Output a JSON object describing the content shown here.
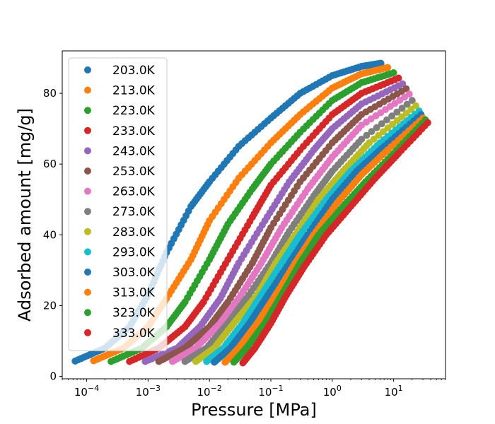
{
  "chart_data": {
    "type": "scatter",
    "xlabel": "Pressure [MPa]",
    "ylabel": "Adsorbed amount [mg/g]",
    "xscale": "log",
    "xlim": [
      4e-05,
      70
    ],
    "ylim": [
      -0.7,
      92
    ],
    "x_ticks": [
      {
        "value": 0.0001,
        "base": "10",
        "exp": "−4"
      },
      {
        "value": 0.001,
        "base": "10",
        "exp": "−3"
      },
      {
        "value": 0.01,
        "base": "10",
        "exp": "−2"
      },
      {
        "value": 0.1,
        "base": "10",
        "exp": "−1"
      },
      {
        "value": 1,
        "base": "10",
        "exp": "0"
      },
      {
        "value": 10,
        "base": "10",
        "exp": "1"
      }
    ],
    "y_ticks": [
      "0",
      "20",
      "40",
      "60",
      "80"
    ],
    "legend_position": "upper-left",
    "grid": false,
    "series": [
      {
        "name": "203.0K",
        "color": "#1f77b4",
        "points": [
          [
            6.5e-05,
            4.3
          ],
          [
            0.0002,
            8
          ],
          [
            0.0005,
            14
          ],
          [
            0.001,
            23
          ],
          [
            0.002,
            35
          ],
          [
            0.005,
            48
          ],
          [
            0.01,
            55
          ],
          [
            0.03,
            65
          ],
          [
            0.1,
            73
          ],
          [
            0.3,
            80
          ],
          [
            1,
            85
          ],
          [
            3,
            87.6
          ],
          [
            6.2,
            88.5
          ]
        ]
      },
      {
        "name": "213.0K",
        "color": "#ff7f0e",
        "points": [
          [
            0.00013,
            4.4
          ],
          [
            0.0004,
            8
          ],
          [
            0.001,
            14
          ],
          [
            0.002,
            22
          ],
          [
            0.005,
            33
          ],
          [
            0.01,
            44
          ],
          [
            0.03,
            56
          ],
          [
            0.1,
            66
          ],
          [
            0.3,
            74
          ],
          [
            1,
            81.5
          ],
          [
            3,
            85.5
          ],
          [
            8,
            87.3
          ]
        ]
      },
      {
        "name": "223.0K",
        "color": "#2ca02c",
        "points": [
          [
            0.00025,
            4.2
          ],
          [
            0.0008,
            8
          ],
          [
            0.002,
            14
          ],
          [
            0.004,
            21
          ],
          [
            0.01,
            33
          ],
          [
            0.02,
            43
          ],
          [
            0.05,
            53
          ],
          [
            0.1,
            60
          ],
          [
            0.3,
            69
          ],
          [
            1,
            78
          ],
          [
            3,
            83
          ],
          [
            10,
            85.8
          ]
        ]
      },
      {
        "name": "233.0K",
        "color": "#d62728",
        "points": [
          [
            0.0005,
            4.2
          ],
          [
            0.0015,
            8
          ],
          [
            0.004,
            14
          ],
          [
            0.008,
            21
          ],
          [
            0.02,
            33
          ],
          [
            0.05,
            45
          ],
          [
            0.1,
            54
          ],
          [
            0.3,
            64
          ],
          [
            1,
            74
          ],
          [
            3,
            80
          ],
          [
            12,
            84.3
          ]
        ]
      },
      {
        "name": "243.0K",
        "color": "#9467bd",
        "points": [
          [
            0.0009,
            4.2
          ],
          [
            0.003,
            8
          ],
          [
            0.007,
            14
          ],
          [
            0.015,
            22
          ],
          [
            0.03,
            32
          ],
          [
            0.08,
            44
          ],
          [
            0.2,
            55
          ],
          [
            0.5,
            64
          ],
          [
            1,
            70
          ],
          [
            3,
            77
          ],
          [
            14,
            82.7
          ]
        ]
      },
      {
        "name": "253.0K",
        "color": "#8c564b",
        "points": [
          [
            0.0015,
            4.2
          ],
          [
            0.004,
            8
          ],
          [
            0.01,
            14
          ],
          [
            0.02,
            21
          ],
          [
            0.05,
            32
          ],
          [
            0.1,
            42
          ],
          [
            0.3,
            55
          ],
          [
            1,
            66
          ],
          [
            3,
            74
          ],
          [
            16,
            81.3
          ]
        ]
      },
      {
        "name": "263.0K",
        "color": "#e377c2",
        "points": [
          [
            0.0025,
            4.2
          ],
          [
            0.006,
            8
          ],
          [
            0.015,
            15
          ],
          [
            0.03,
            22
          ],
          [
            0.07,
            32
          ],
          [
            0.15,
            42
          ],
          [
            0.4,
            53
          ],
          [
            1,
            62
          ],
          [
            3,
            71
          ],
          [
            18,
            79.8
          ]
        ]
      },
      {
        "name": "273.0K",
        "color": "#7f7f7f",
        "points": [
          [
            0.004,
            4.2
          ],
          [
            0.009,
            8
          ],
          [
            0.02,
            15
          ],
          [
            0.04,
            22
          ],
          [
            0.1,
            32
          ],
          [
            0.2,
            41
          ],
          [
            0.5,
            51
          ],
          [
            1,
            58
          ],
          [
            3,
            67
          ],
          [
            20,
            78
          ]
        ]
      },
      {
        "name": "283.0K",
        "color": "#bcbd22",
        "points": [
          [
            0.006,
            4.2
          ],
          [
            0.012,
            8
          ],
          [
            0.025,
            15
          ],
          [
            0.06,
            23
          ],
          [
            0.12,
            32
          ],
          [
            0.3,
            42
          ],
          [
            0.6,
            50
          ],
          [
            1.5,
            58
          ],
          [
            4,
            66
          ],
          [
            23,
            76.5
          ]
        ]
      },
      {
        "name": "293.0K",
        "color": "#17becf",
        "points": [
          [
            0.009,
            4.2
          ],
          [
            0.017,
            8
          ],
          [
            0.035,
            15
          ],
          [
            0.07,
            23
          ],
          [
            0.15,
            32
          ],
          [
            0.3,
            40
          ],
          [
            0.8,
            50
          ],
          [
            2,
            58
          ],
          [
            6,
            66
          ],
          [
            26,
            75
          ]
        ]
      },
      {
        "name": "303.0K",
        "color": "#1f77b4",
        "points": [
          [
            0.012,
            4
          ],
          [
            0.022,
            8
          ],
          [
            0.045,
            15
          ],
          [
            0.09,
            23
          ],
          [
            0.2,
            32
          ],
          [
            0.4,
            40
          ],
          [
            1,
            50
          ],
          [
            2.5,
            58
          ],
          [
            7,
            65
          ],
          [
            28,
            74
          ]
        ]
      },
      {
        "name": "313.0K",
        "color": "#ff7f0e",
        "points": [
          [
            0.018,
            4
          ],
          [
            0.03,
            8
          ],
          [
            0.06,
            15
          ],
          [
            0.12,
            23
          ],
          [
            0.25,
            32
          ],
          [
            0.5,
            40
          ],
          [
            1.2,
            49
          ],
          [
            3,
            57
          ],
          [
            8,
            64
          ],
          [
            30,
            73
          ]
        ]
      },
      {
        "name": "323.0K",
        "color": "#2ca02c",
        "points": [
          [
            0.025,
            4
          ],
          [
            0.04,
            8
          ],
          [
            0.08,
            15
          ],
          [
            0.15,
            23
          ],
          [
            0.3,
            32
          ],
          [
            0.6,
            40
          ],
          [
            1.5,
            48
          ],
          [
            3.5,
            55
          ],
          [
            10,
            63
          ],
          [
            33,
            72.5
          ]
        ]
      },
      {
        "name": "333.0K",
        "color": "#d62728",
        "points": [
          [
            0.035,
            3.8
          ],
          [
            0.055,
            8
          ],
          [
            0.1,
            15
          ],
          [
            0.18,
            23
          ],
          [
            0.35,
            31
          ],
          [
            0.8,
            40
          ],
          [
            2,
            48
          ],
          [
            5,
            56
          ],
          [
            12,
            63
          ],
          [
            36,
            71.7
          ]
        ]
      }
    ]
  }
}
